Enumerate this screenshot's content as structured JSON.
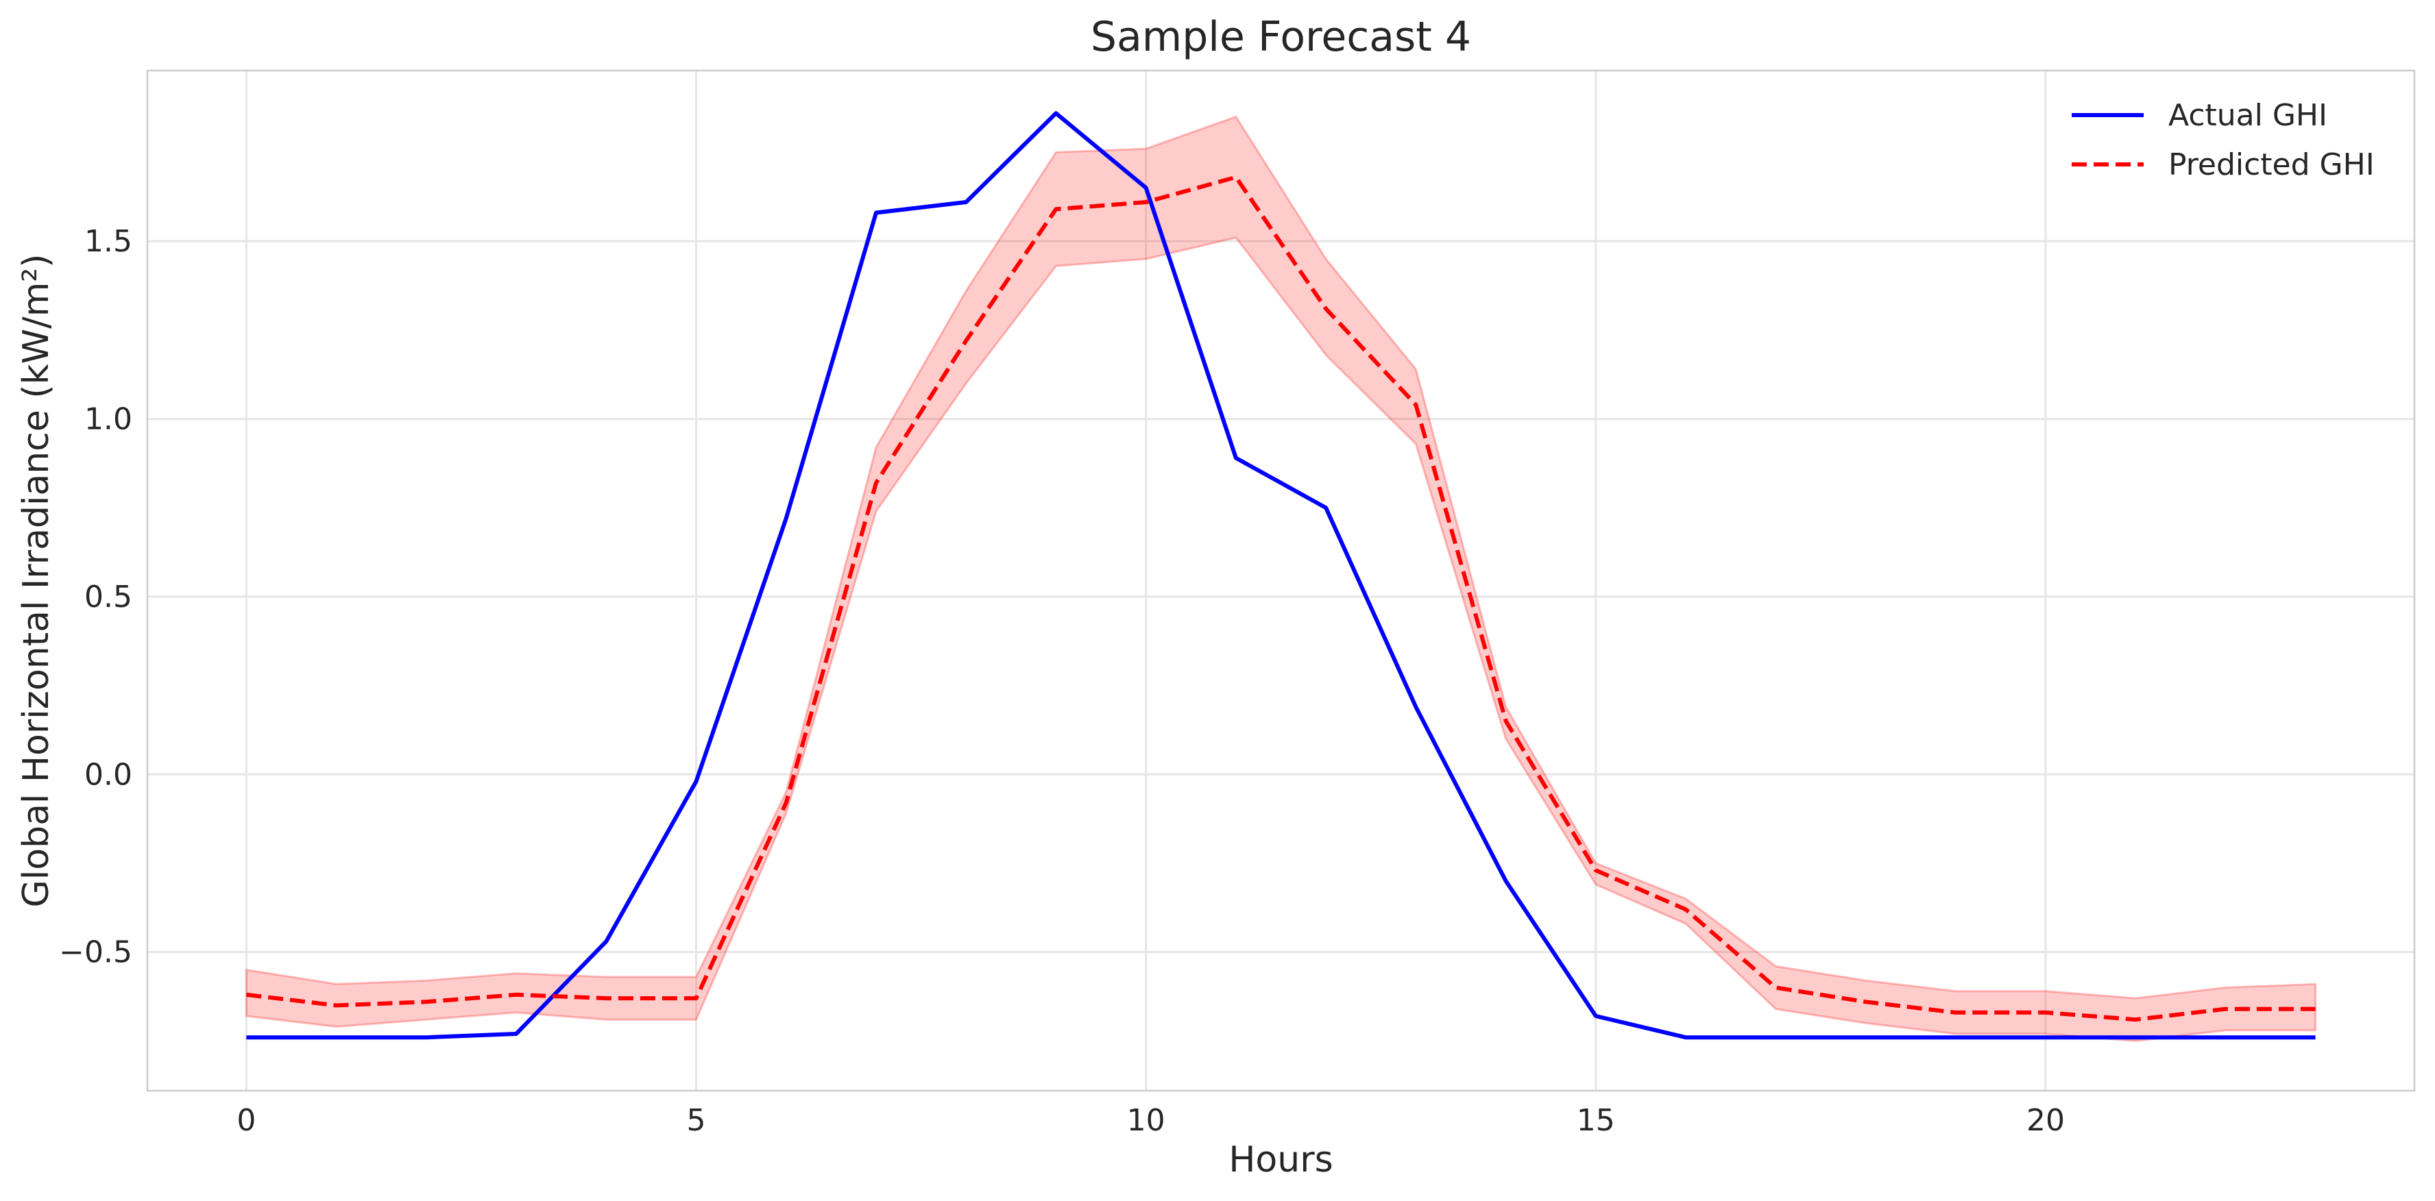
{
  "chart_data": {
    "type": "line",
    "title": "Sample Forecast 4",
    "xlabel": "Hours",
    "ylabel": "Global Horizontal Irradiance (kW/m²)",
    "xlim": [
      -1.1,
      24.1
    ],
    "ylim": [
      -0.89,
      1.98
    ],
    "x_ticks": [
      0,
      5,
      10,
      15,
      20
    ],
    "y_ticks": [
      -0.5,
      0.0,
      0.5,
      1.0,
      1.5
    ],
    "x_tick_labels": [
      "0",
      "5",
      "10",
      "15",
      "20"
    ],
    "y_tick_labels": [
      "−0.5",
      "0.0",
      "0.5",
      "1.0",
      "1.5"
    ],
    "grid": true,
    "legend_position": "top-right",
    "x": [
      0,
      1,
      2,
      3,
      4,
      5,
      6,
      7,
      8,
      9,
      10,
      11,
      12,
      13,
      14,
      15,
      16,
      17,
      18,
      19,
      20,
      21,
      22,
      23
    ],
    "series": [
      {
        "name": "Actual GHI",
        "color": "#0000ff",
        "style": "solid",
        "values": [
          -0.74,
          -0.74,
          -0.74,
          -0.73,
          -0.47,
          -0.02,
          0.72,
          1.58,
          1.61,
          1.86,
          1.65,
          0.89,
          0.75,
          0.19,
          -0.3,
          -0.68,
          -0.74,
          -0.74,
          -0.74,
          -0.74,
          -0.74,
          -0.74,
          -0.74,
          -0.74
        ]
      },
      {
        "name": "Predicted GHI",
        "color": "#ff0000",
        "style": "dashed",
        "values": [
          -0.62,
          -0.65,
          -0.64,
          -0.62,
          -0.63,
          -0.63,
          -0.08,
          0.82,
          1.22,
          1.59,
          1.61,
          1.68,
          1.31,
          1.04,
          0.15,
          -0.27,
          -0.38,
          -0.6,
          -0.64,
          -0.67,
          -0.67,
          -0.69,
          -0.66,
          -0.66
        ],
        "band_lower": [
          -0.68,
          -0.71,
          -0.69,
          -0.67,
          -0.69,
          -0.69,
          -0.11,
          0.74,
          1.1,
          1.43,
          1.45,
          1.51,
          1.18,
          0.93,
          0.1,
          -0.31,
          -0.42,
          -0.66,
          -0.7,
          -0.73,
          -0.73,
          -0.75,
          -0.72,
          -0.72
        ],
        "band_upper": [
          -0.55,
          -0.59,
          -0.58,
          -0.56,
          -0.57,
          -0.57,
          -0.05,
          0.92,
          1.36,
          1.75,
          1.76,
          1.85,
          1.45,
          1.14,
          0.19,
          -0.25,
          -0.35,
          -0.54,
          -0.58,
          -0.61,
          -0.61,
          -0.63,
          -0.6,
          -0.59
        ],
        "band_color": "#ff0000",
        "band_opacity": 0.2
      }
    ]
  }
}
